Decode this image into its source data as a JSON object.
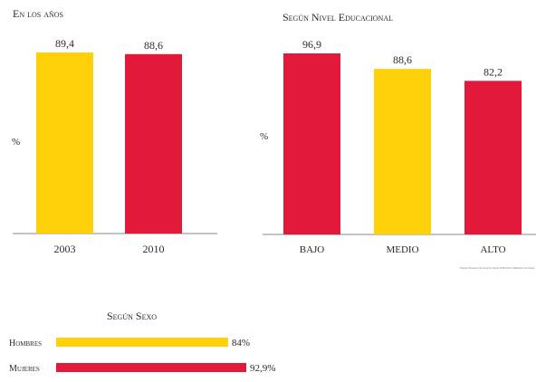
{
  "colors": {
    "yellow": "#FFD10A",
    "red": "#E2193A",
    "axis": "#8a8a8a"
  },
  "chart_data": [
    {
      "type": "bar",
      "title": "En los años",
      "ylabel": "%",
      "categories": [
        "2003",
        "2010"
      ],
      "values": [
        89.4,
        88.6
      ],
      "value_labels": [
        "89,4",
        "88,6"
      ],
      "colors": [
        "yellow",
        "red"
      ]
    },
    {
      "type": "bar",
      "title": "Según Nivel Educacional",
      "ylabel": "%",
      "categories": [
        "BAJO",
        "MEDIO",
        "ALTO"
      ],
      "values": [
        96.9,
        88.6,
        82.2
      ],
      "value_labels": [
        "96,9",
        "88,6",
        "82,2"
      ],
      "colors": [
        "red",
        "yellow",
        "red"
      ],
      "source": "Fuente: Encuesta Nacional de Salud 2009-2010, Ministerio de Salud"
    },
    {
      "type": "bar",
      "orientation": "horizontal",
      "title": "Según Sexo",
      "categories": [
        "Hombres",
        "Mujeres"
      ],
      "values": [
        84,
        92.9
      ],
      "value_labels": [
        "84%",
        "92,9%"
      ],
      "colors": [
        "yellow",
        "red"
      ]
    }
  ]
}
